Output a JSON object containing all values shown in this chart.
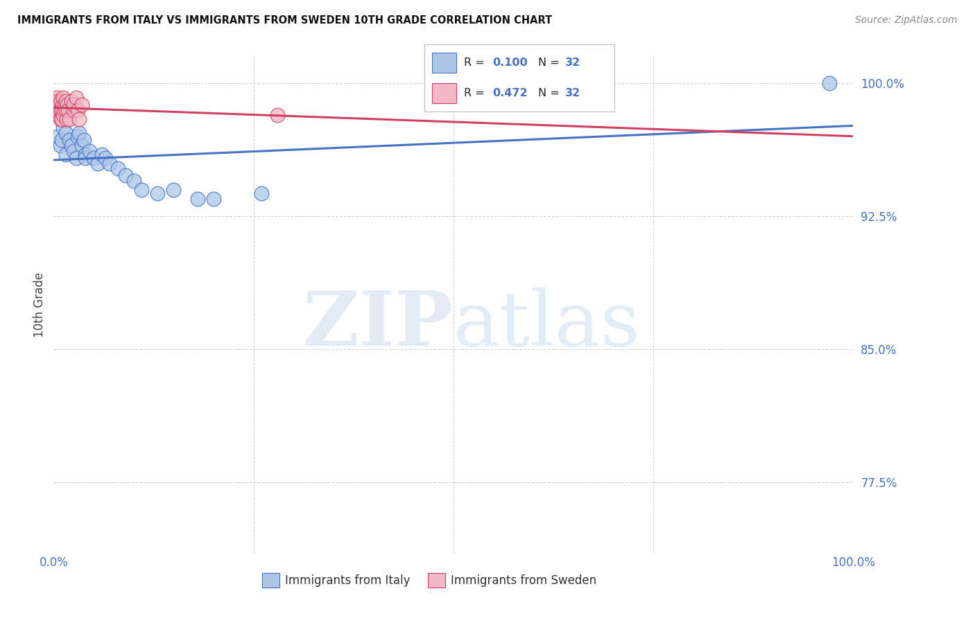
{
  "title": "IMMIGRANTS FROM ITALY VS IMMIGRANTS FROM SWEDEN 10TH GRADE CORRELATION CHART",
  "source": "Source: ZipAtlas.com",
  "ylabel": "10th Grade",
  "xlim": [
    0.0,
    1.0
  ],
  "ylim": [
    0.735,
    1.015
  ],
  "yticks": [
    0.775,
    0.85,
    0.925,
    1.0
  ],
  "ytick_labels": [
    "77.5%",
    "85.0%",
    "92.5%",
    "100.0%"
  ],
  "color_italy": "#adc6e8",
  "color_sweden": "#f2b8c6",
  "color_trend_italy": "#4472c4",
  "color_trend_sweden": "#d04060",
  "color_axis_label": "#4472c4",
  "italy_x": [
    0.005,
    0.008,
    0.01,
    0.012,
    0.015,
    0.015,
    0.02,
    0.022,
    0.025,
    0.028,
    0.03,
    0.032,
    0.035,
    0.038,
    0.04,
    0.04,
    0.045,
    0.05,
    0.055,
    0.06,
    0.065,
    0.07,
    0.08,
    0.09,
    0.1,
    0.11,
    0.13,
    0.15,
    0.18,
    0.2,
    0.26,
    0.97
  ],
  "italy_y": [
    0.97,
    0.965,
    0.968,
    0.975,
    0.972,
    0.96,
    0.968,
    0.965,
    0.962,
    0.958,
    0.97,
    0.972,
    0.965,
    0.968,
    0.96,
    0.958,
    0.962,
    0.958,
    0.955,
    0.96,
    0.958,
    0.955,
    0.952,
    0.948,
    0.945,
    0.94,
    0.938,
    0.94,
    0.935,
    0.935,
    0.938,
    1.0
  ],
  "sweden_x": [
    0.002,
    0.003,
    0.004,
    0.005,
    0.005,
    0.006,
    0.006,
    0.007,
    0.008,
    0.008,
    0.009,
    0.01,
    0.01,
    0.011,
    0.012,
    0.012,
    0.013,
    0.014,
    0.015,
    0.015,
    0.016,
    0.017,
    0.018,
    0.02,
    0.022,
    0.025,
    0.025,
    0.028,
    0.03,
    0.032,
    0.035,
    0.28
  ],
  "sweden_y": [
    0.99,
    0.985,
    0.992,
    0.988,
    0.982,
    0.99,
    0.985,
    0.988,
    0.985,
    0.98,
    0.99,
    0.985,
    0.98,
    0.988,
    0.992,
    0.982,
    0.985,
    0.988,
    0.99,
    0.985,
    0.98,
    0.988,
    0.985,
    0.98,
    0.99,
    0.985,
    0.988,
    0.992,
    0.985,
    0.98,
    0.988,
    0.982
  ],
  "legend_italy_r": "R = 0.100",
  "legend_italy_n": "N = 32",
  "legend_sweden_r": "R = 0.472",
  "legend_sweden_n": "N = 32",
  "background_color": "#ffffff",
  "grid_color": "#d0d0d0"
}
